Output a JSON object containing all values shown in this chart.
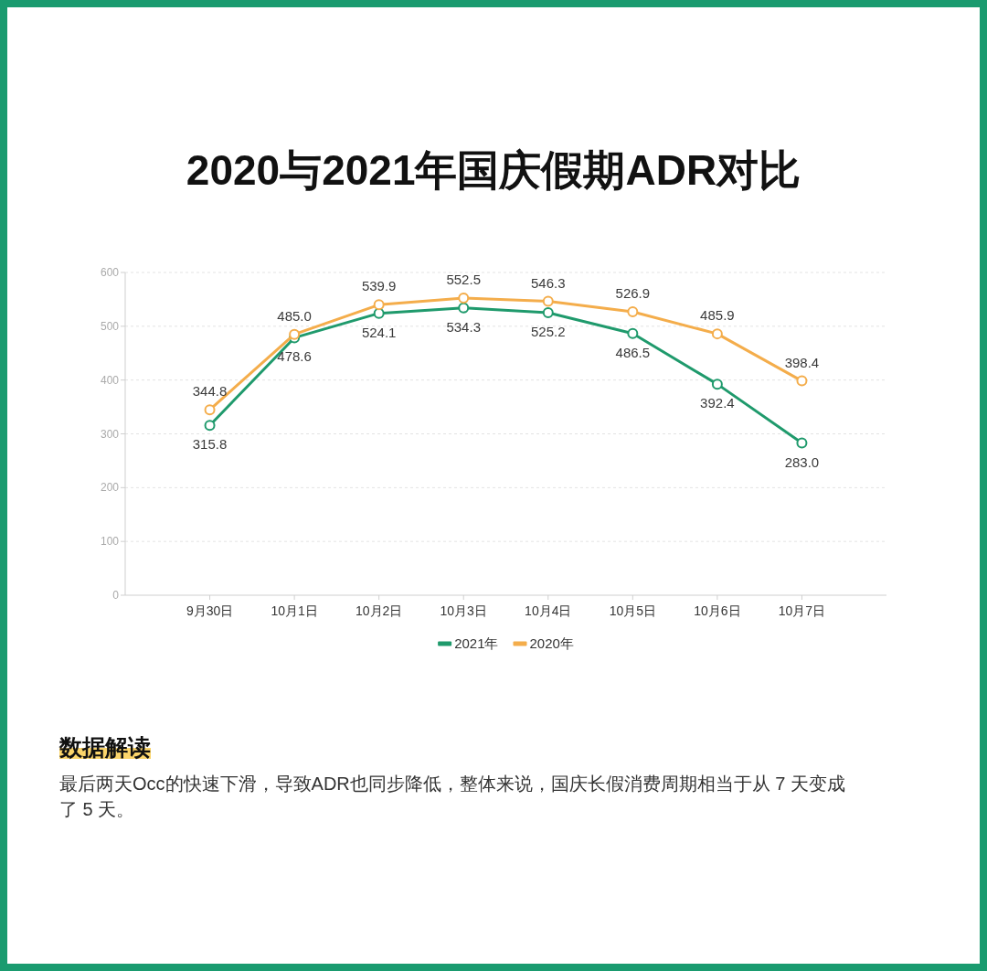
{
  "chart_data": {
    "type": "line",
    "title": "2020与2021年国庆假期ADR对比",
    "annotations": [
      "数据解读",
      "最后两天Occ的快速下滑，导致ADR也同步降低，整体来说，国庆长假消费周期相当于从 7 天变成了 5 天。"
    ],
    "categories": [
      "9月30日",
      "10月1日",
      "10月2日",
      "10月3日",
      "10月4日",
      "10月5日",
      "10月6日",
      "10月7日"
    ],
    "series": [
      {
        "name": "2021年",
        "color": "#1f9a6c",
        "values": [
          315.8,
          478.6,
          524.1,
          534.3,
          525.2,
          486.5,
          392.4,
          283.0
        ],
        "value_labels": [
          "315.8",
          "478.6",
          "524.1",
          "534.3",
          "525.2",
          "486.5",
          "392.4",
          "283.0"
        ]
      },
      {
        "name": "2020年",
        "color": "#f4ad4b",
        "values": [
          344.8,
          485.0,
          539.9,
          552.5,
          546.3,
          526.9,
          485.9,
          398.4
        ],
        "value_labels": [
          "344.8",
          "485.0",
          "539.9",
          "552.5",
          "546.3",
          "526.9",
          "485.9",
          "398.4"
        ]
      }
    ],
    "ylim": [
      0,
      600
    ],
    "yticks": [
      0,
      100,
      200,
      300,
      400,
      500,
      600
    ],
    "grid": "y",
    "legend": "bottom",
    "marker": "circle"
  }
}
